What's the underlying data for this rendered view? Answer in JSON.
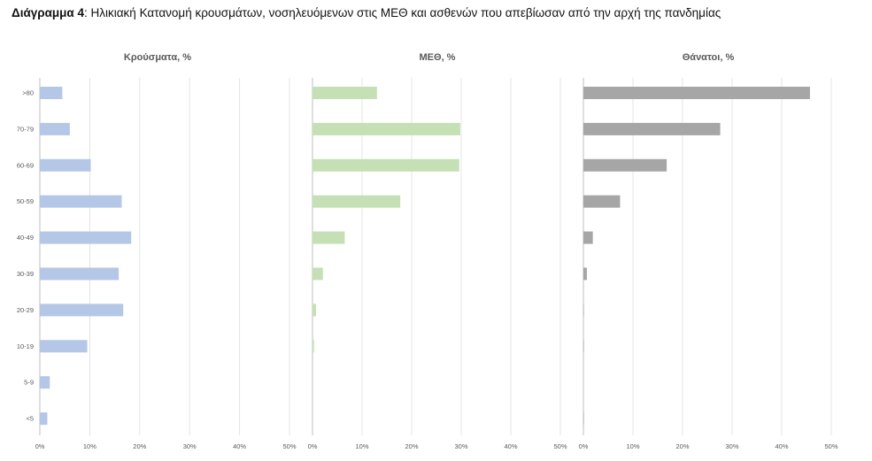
{
  "figure": {
    "label": "Διάγραμμα 4",
    "caption": ": Ηλικιακή Κατανομή κρουσμάτων, νοσηλευόμενων στις ΜΕΘ και ασθενών που απεβίωσαν από την αρχή της πανδημίας"
  },
  "colors": {
    "cases": "#b4c7e7",
    "icu": "#c5e0b4",
    "deaths": "#a6a6a6",
    "grid": "#e4e4e4",
    "axis": "#bfbfbf"
  },
  "chart_data": [
    {
      "type": "bar",
      "orientation": "horizontal",
      "title": "Κρούσματα, %",
      "categories": [
        ">80",
        "70-79",
        "60-69",
        "50-59",
        "40-49",
        "30-39",
        "20-29",
        "10-19",
        "5-9",
        "<5"
      ],
      "values": [
        4.5,
        6.0,
        10.2,
        16.4,
        18.3,
        15.8,
        16.7,
        9.5,
        2.0,
        1.5
      ],
      "xlim": [
        0,
        50
      ],
      "xticks": [
        "0%",
        "10%",
        "20%",
        "30%",
        "40%",
        "50%"
      ],
      "grid": true
    },
    {
      "type": "bar",
      "orientation": "horizontal",
      "title": "ΜΕΘ, %",
      "categories": [
        ">80",
        "70-79",
        "60-69",
        "50-59",
        "40-49",
        "30-39",
        "20-29",
        "10-19",
        "5-9",
        "<5"
      ],
      "values": [
        13.0,
        29.8,
        29.6,
        17.7,
        6.5,
        2.1,
        0.7,
        0.3,
        0,
        0
      ],
      "xlim": [
        0,
        50
      ],
      "xticks": [
        "0%",
        "10%",
        "20%",
        "30%",
        "40%",
        "50%"
      ],
      "grid": true
    },
    {
      "type": "bar",
      "orientation": "horizontal",
      "title": "Θάνατοι, %",
      "categories": [
        ">80",
        "70-79",
        "60-69",
        "50-59",
        "40-49",
        "30-39",
        "20-29",
        "10-19",
        "5-9",
        "<5"
      ],
      "values": [
        45.7,
        27.6,
        16.8,
        7.4,
        1.9,
        0.7,
        0.1,
        0.1,
        0,
        0.1
      ],
      "xlim": [
        0,
        50
      ],
      "xticks": [
        "0%",
        "10%",
        "20%",
        "30%",
        "40%",
        "50%"
      ],
      "grid": true
    }
  ]
}
